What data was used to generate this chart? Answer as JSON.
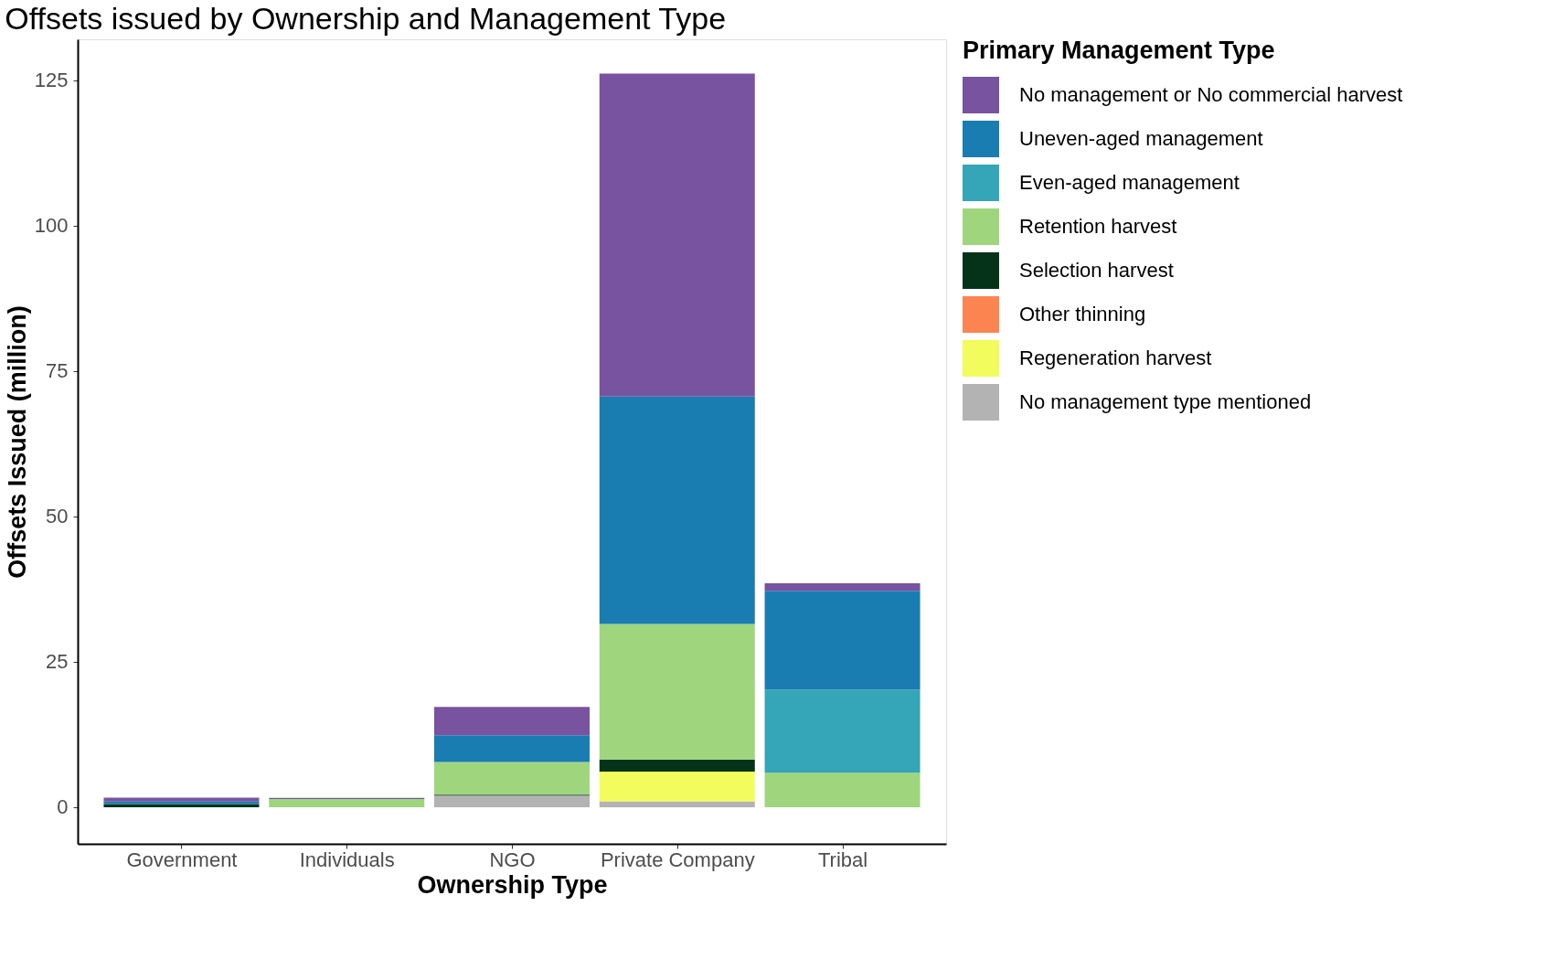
{
  "chart_data": {
    "type": "bar",
    "stacked": true,
    "title": "Offsets issued by Ownership and Management Type",
    "xlabel": "Ownership Type",
    "ylabel": "Offsets Issued (million)",
    "legend_title": "Primary Management Type",
    "legend": "right",
    "grid": false,
    "categories": [
      "Government",
      "Individuals",
      "NGO",
      "Private Company",
      "Tribal"
    ],
    "ylim": [
      -6.3,
      132
    ],
    "yticks": [
      0,
      25,
      50,
      75,
      100,
      125
    ],
    "series": [
      {
        "name": "No management type mentioned",
        "color": "#b3b3b3",
        "values": [
          null,
          null,
          2.0,
          1.0,
          null
        ]
      },
      {
        "name": "Regeneration harvest",
        "color": "#f2fc5c",
        "values": [
          null,
          null,
          null,
          5.1,
          null
        ]
      },
      {
        "name": "Other thinning",
        "color": "#fc8451",
        "values": [
          null,
          null,
          null,
          null,
          null
        ]
      },
      {
        "name": "Selection harvest",
        "color": "#05331a",
        "values": [
          0.55,
          null,
          0.15,
          2.1,
          null
        ]
      },
      {
        "name": "Retention harvest",
        "color": "#9fd67d",
        "values": [
          null,
          1.4,
          5.6,
          23.3,
          5.9
        ]
      },
      {
        "name": "Even-aged management",
        "color": "#35a5b8",
        "values": [
          null,
          null,
          null,
          null,
          14.3
        ]
      },
      {
        "name": "Uneven-aged management",
        "color": "#1a7db2",
        "values": [
          0.4,
          null,
          4.6,
          39.1,
          17.0
        ]
      },
      {
        "name": "No management or No commercial harvest",
        "color": "#7753a0",
        "values": [
          0.7,
          0.2,
          4.9,
          55.5,
          1.3
        ]
      }
    ]
  }
}
